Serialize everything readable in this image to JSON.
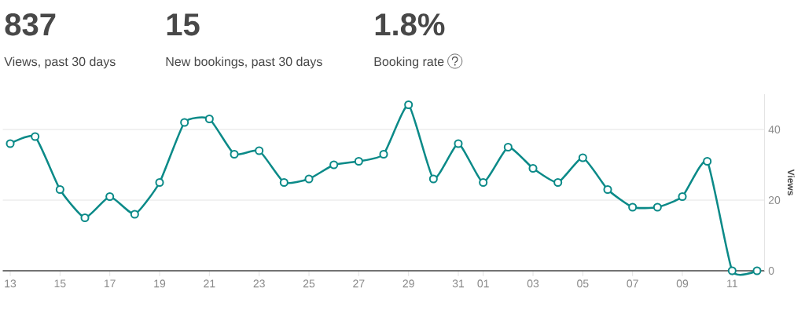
{
  "chart_data": {
    "type": "line",
    "annotations": [
      "837",
      "Views, past 30 days",
      "15",
      "New bookings, past 30 days",
      "1.8%",
      "Booking rate"
    ],
    "categories": [
      "13",
      null,
      "15",
      null,
      "17",
      null,
      "19",
      null,
      "21",
      null,
      "23",
      null,
      "25",
      null,
      "27",
      null,
      "29",
      null,
      "31",
      "01",
      null,
      "03",
      null,
      "05",
      null,
      "07",
      null,
      "09",
      null,
      "11",
      null
    ],
    "values": [
      36,
      38,
      23,
      15,
      21,
      16,
      25,
      42,
      43,
      33,
      34,
      25,
      26,
      30,
      31,
      33,
      47,
      26,
      36,
      25,
      35,
      29,
      25,
      32,
      23,
      18,
      18,
      21,
      31,
      0,
      0
    ],
    "color": "#0b8a88",
    "ylabel": "Views",
    "ylim": [
      0,
      50
    ],
    "yticks": [
      0,
      20,
      40
    ],
    "grid": "y",
    "marker": "circle"
  }
}
